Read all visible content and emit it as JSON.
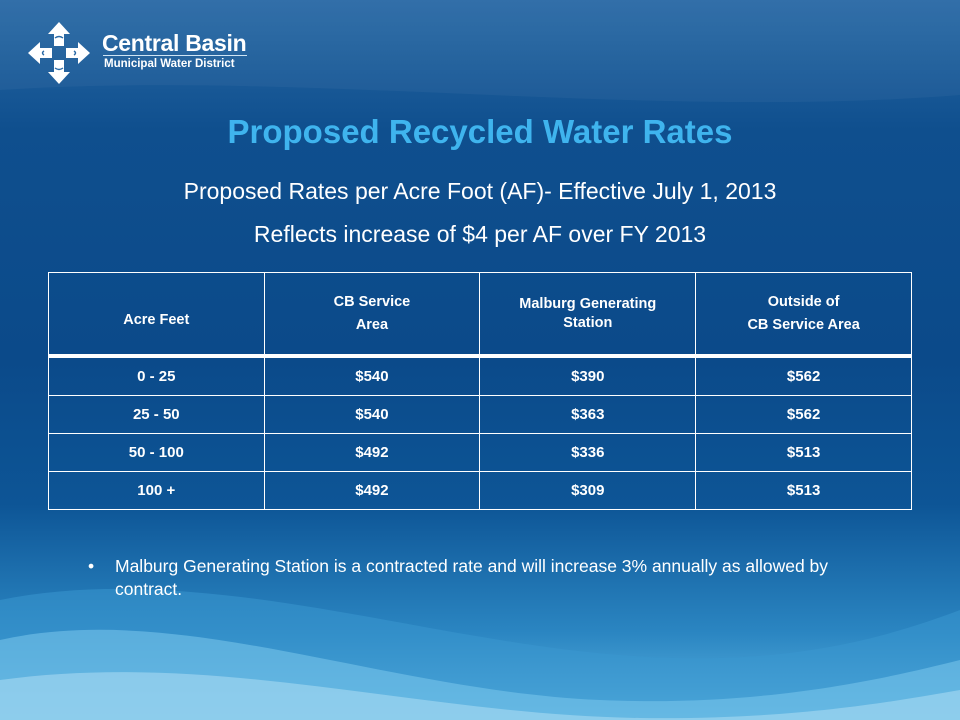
{
  "logo": {
    "name": "Central Basin",
    "subtitle": "Municipal Water District"
  },
  "slide": {
    "title": "Proposed Recycled Water Rates",
    "subtitle_1": "Proposed Rates per Acre Foot (AF)- Effective July 1, 2013",
    "subtitle_2": "Reflects increase of $4 per AF over FY 2013"
  },
  "table": {
    "headers": [
      [
        "Acre Feet"
      ],
      [
        "CB Service",
        "Area"
      ],
      [
        "Malburg Generating",
        "Station"
      ],
      [
        "Outside of",
        "CB Service Area"
      ]
    ],
    "rows": [
      [
        "0 - 25",
        "$540",
        "$390",
        "$562"
      ],
      [
        "25 - 50",
        "$540",
        "$363",
        "$562"
      ],
      [
        "50 - 100",
        "$492",
        "$336",
        "$513"
      ],
      [
        "100 +",
        "$492",
        "$309",
        "$513"
      ]
    ]
  },
  "notes": {
    "bullet_1": "Malburg Generating Station is a contracted rate and will increase 3% annually as allowed by contract."
  },
  "colors": {
    "title": "#3fb4ee",
    "background": "#0b4a8a",
    "text": "#ffffff"
  },
  "icons": [
    "logo-arrows-icon"
  ]
}
